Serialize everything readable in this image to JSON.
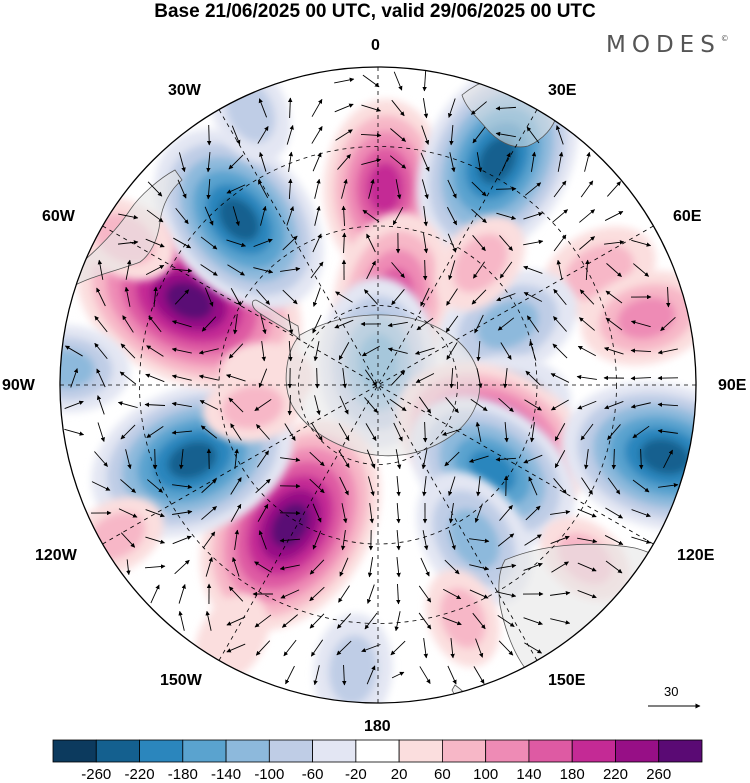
{
  "title": "Base 21/06/2025 00 UTC, valid 29/06/2025 00 UTC",
  "brand": {
    "text": "MODES",
    "mark": "©"
  },
  "map": {
    "projection": "south-polar-stereographic",
    "longitude_labels": {
      "lon_0": "0",
      "lon_30e": "30E",
      "lon_60e": "60E",
      "lon_90e": "90E",
      "lon_120e": "120E",
      "lon_150e": "150E",
      "lon_180": "180",
      "lon_150w": "150W",
      "lon_120w": "120W",
      "lon_90w": "90W",
      "lon_60w": "60W",
      "lon_30w": "30W"
    },
    "graticule": "dashed",
    "vector_reference": {
      "value": "30"
    }
  },
  "legend": {
    "labels": [
      "-260",
      "-220",
      "-180",
      "-140",
      "-100",
      "-60",
      "-20",
      "20",
      "60",
      "100",
      "140",
      "180",
      "220",
      "260"
    ],
    "colors": [
      "#0c3a5e",
      "#14608f",
      "#2b86bd",
      "#5aa3cf",
      "#8db9dc",
      "#bfcde6",
      "#e3e6f3",
      "#ffffff",
      "#fbdede",
      "#f7b7c7",
      "#ee8bb5",
      "#de5aa3",
      "#c42a95",
      "#970f86",
      "#5a0a74"
    ]
  },
  "anomaly_blobs": [
    {
      "lon": 2,
      "colat": 0.62,
      "value": 160
    },
    {
      "lon": 28,
      "colat": 0.8,
      "value": -210
    },
    {
      "lon": 10,
      "colat": 0.28,
      "value": 150
    },
    {
      "lon": 0,
      "colat": 0.07,
      "value": -150
    },
    {
      "lon": 63,
      "colat": 0.78,
      "value": 70
    },
    {
      "lon": 76,
      "colat": 0.87,
      "value": 90
    },
    {
      "lon": 65,
      "colat": 0.45,
      "value": -110
    },
    {
      "lon": 95,
      "colat": 0.42,
      "value": -70
    },
    {
      "lon": 115,
      "colat": 0.4,
      "value": 200
    },
    {
      "lon": 104,
      "colat": 0.93,
      "value": -210
    },
    {
      "lon": 127,
      "colat": 0.45,
      "value": -170
    },
    {
      "lon": 148,
      "colat": 0.57,
      "value": -110
    },
    {
      "lon": 160,
      "colat": 0.78,
      "value": 40
    },
    {
      "lon": 130,
      "colat": 0.85,
      "value": 40
    },
    {
      "lon": -148,
      "colat": 0.52,
      "value": 240
    },
    {
      "lon": -175,
      "colat": 0.9,
      "value": -60
    },
    {
      "lon": -112,
      "colat": 0.63,
      "value": -210
    },
    {
      "lon": -66,
      "colat": 0.65,
      "value": 250
    },
    {
      "lon": -40,
      "colat": 0.68,
      "value": -200
    },
    {
      "lon": -87,
      "colat": 0.98,
      "value": -80
    },
    {
      "lon": -25,
      "colat": 0.95,
      "value": -50
    },
    {
      "lon": -120,
      "colat": 0.95,
      "value": 40
    },
    {
      "lon": -60,
      "colat": 0.92,
      "value": 50
    },
    {
      "lon": -150,
      "colat": 0.92,
      "value": 30
    },
    {
      "lon": 40,
      "colat": 0.5,
      "value": 50
    },
    {
      "lon": -85,
      "colat": 0.35,
      "value": 30
    },
    {
      "lon": -100,
      "colat": 0.4,
      "value": 40
    }
  ]
}
